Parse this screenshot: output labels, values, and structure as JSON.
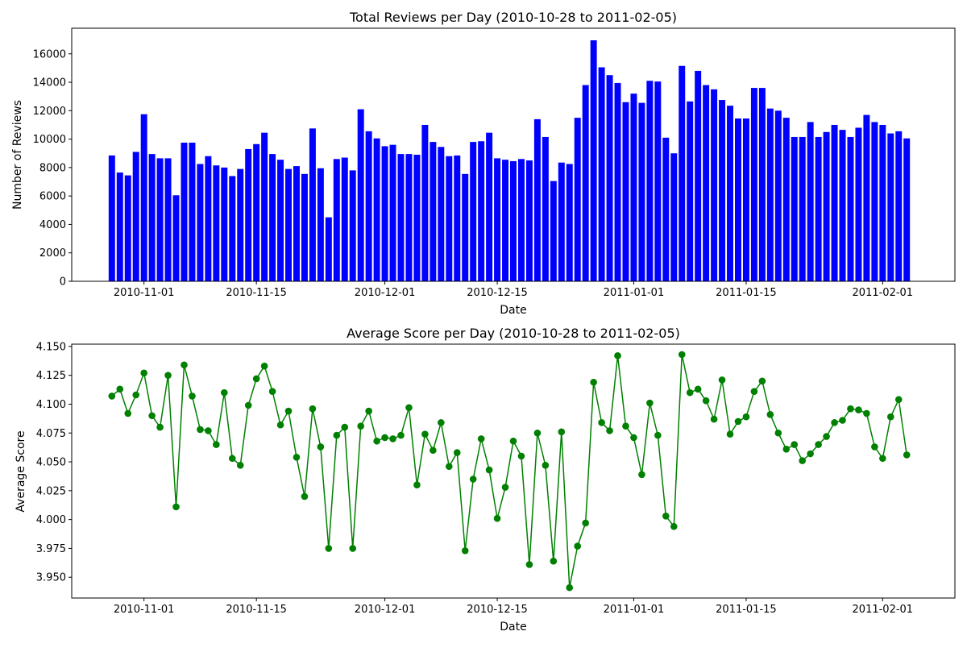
{
  "chart_data": [
    {
      "type": "bar",
      "title": "Total Reviews per Day (2010-10-28 to 2011-02-05)",
      "xlabel": "Date",
      "ylabel": "Number of Reviews",
      "bar_color": "#0000ff",
      "start_date": "2010-10-28",
      "end_date": "2011-02-05",
      "xlim": [
        "2010-10-23",
        "2011-02-10"
      ],
      "ylim": [
        0,
        17800
      ],
      "x_ticks": [
        "2010-11-01",
        "2010-11-15",
        "2010-12-01",
        "2010-12-15",
        "2011-01-01",
        "2011-01-15",
        "2011-02-01"
      ],
      "y_ticks": [
        0,
        2000,
        4000,
        6000,
        8000,
        10000,
        12000,
        14000,
        16000
      ],
      "grid": false,
      "values": [
        8850,
        7650,
        7450,
        9100,
        11750,
        8950,
        8650,
        8650,
        6050,
        9750,
        9750,
        8250,
        8800,
        8150,
        8000,
        7400,
        7900,
        9300,
        9650,
        10450,
        8950,
        8550,
        7900,
        8100,
        7550,
        10750,
        7950,
        4500,
        8600,
        8700,
        7800,
        12100,
        10550,
        10050,
        9500,
        9600,
        8950,
        8950,
        8900,
        11000,
        9800,
        9450,
        8800,
        8850,
        7550,
        9800,
        9850,
        10450,
        8650,
        8550,
        8450,
        8600,
        8500,
        11400,
        10150,
        7050,
        8350,
        8250,
        11500,
        13800,
        16950,
        15050,
        14500,
        13950,
        12600,
        13200,
        12550,
        14100,
        14050,
        10100,
        9000,
        15150,
        12650,
        14800,
        13800,
        13500,
        12750,
        12350,
        11450,
        11450,
        13600,
        13600,
        12150,
        12000,
        11500,
        10150,
        10150,
        11200,
        10150,
        10500,
        11000,
        10650,
        10150,
        10800,
        11700,
        11200,
        11000,
        10400,
        10550,
        10050
      ]
    },
    {
      "type": "line",
      "title": "Average Score per Day (2010-10-28 to 2011-02-05)",
      "xlabel": "Date",
      "ylabel": "Average Score",
      "line_color": "#008000",
      "marker": "circle",
      "start_date": "2010-10-28",
      "end_date": "2011-02-05",
      "xlim": [
        "2010-10-23",
        "2011-02-10"
      ],
      "ylim": [
        3.932,
        4.152
      ],
      "x_ticks": [
        "2010-11-01",
        "2010-11-15",
        "2010-12-01",
        "2010-12-15",
        "2011-01-01",
        "2011-01-15",
        "2011-02-01"
      ],
      "y_ticks": [
        "3.950",
        "3.975",
        "4.000",
        "4.025",
        "4.050",
        "4.075",
        "4.100",
        "4.125",
        "4.150"
      ],
      "grid": false,
      "values": [
        4.107,
        4.113,
        4.092,
        4.108,
        4.127,
        4.09,
        4.08,
        4.125,
        4.011,
        4.134,
        4.107,
        4.078,
        4.077,
        4.065,
        4.11,
        4.053,
        4.047,
        4.099,
        4.122,
        4.133,
        4.111,
        4.082,
        4.094,
        4.054,
        4.02,
        4.096,
        4.063,
        3.975,
        4.073,
        4.08,
        3.975,
        4.081,
        4.094,
        4.068,
        4.071,
        4.07,
        4.073,
        4.097,
        4.03,
        4.074,
        4.06,
        4.084,
        4.046,
        4.058,
        3.973,
        4.035,
        4.07,
        4.043,
        4.001,
        4.028,
        4.068,
        4.055,
        3.961,
        4.075,
        4.047,
        3.964,
        4.076,
        3.941,
        3.977,
        3.997,
        4.119,
        4.084,
        4.077,
        4.142,
        4.081,
        4.071,
        4.039,
        4.101,
        4.073,
        4.003,
        3.994,
        4.143,
        4.11,
        4.113,
        4.103,
        4.087,
        4.121,
        4.074,
        4.085,
        4.089,
        4.111,
        4.12,
        4.091,
        4.075,
        4.061,
        4.065,
        4.051,
        4.057,
        4.065,
        4.072,
        4.084,
        4.086,
        4.096,
        4.095,
        4.092,
        4.063,
        4.053,
        4.089,
        4.104,
        4.056
      ]
    }
  ]
}
